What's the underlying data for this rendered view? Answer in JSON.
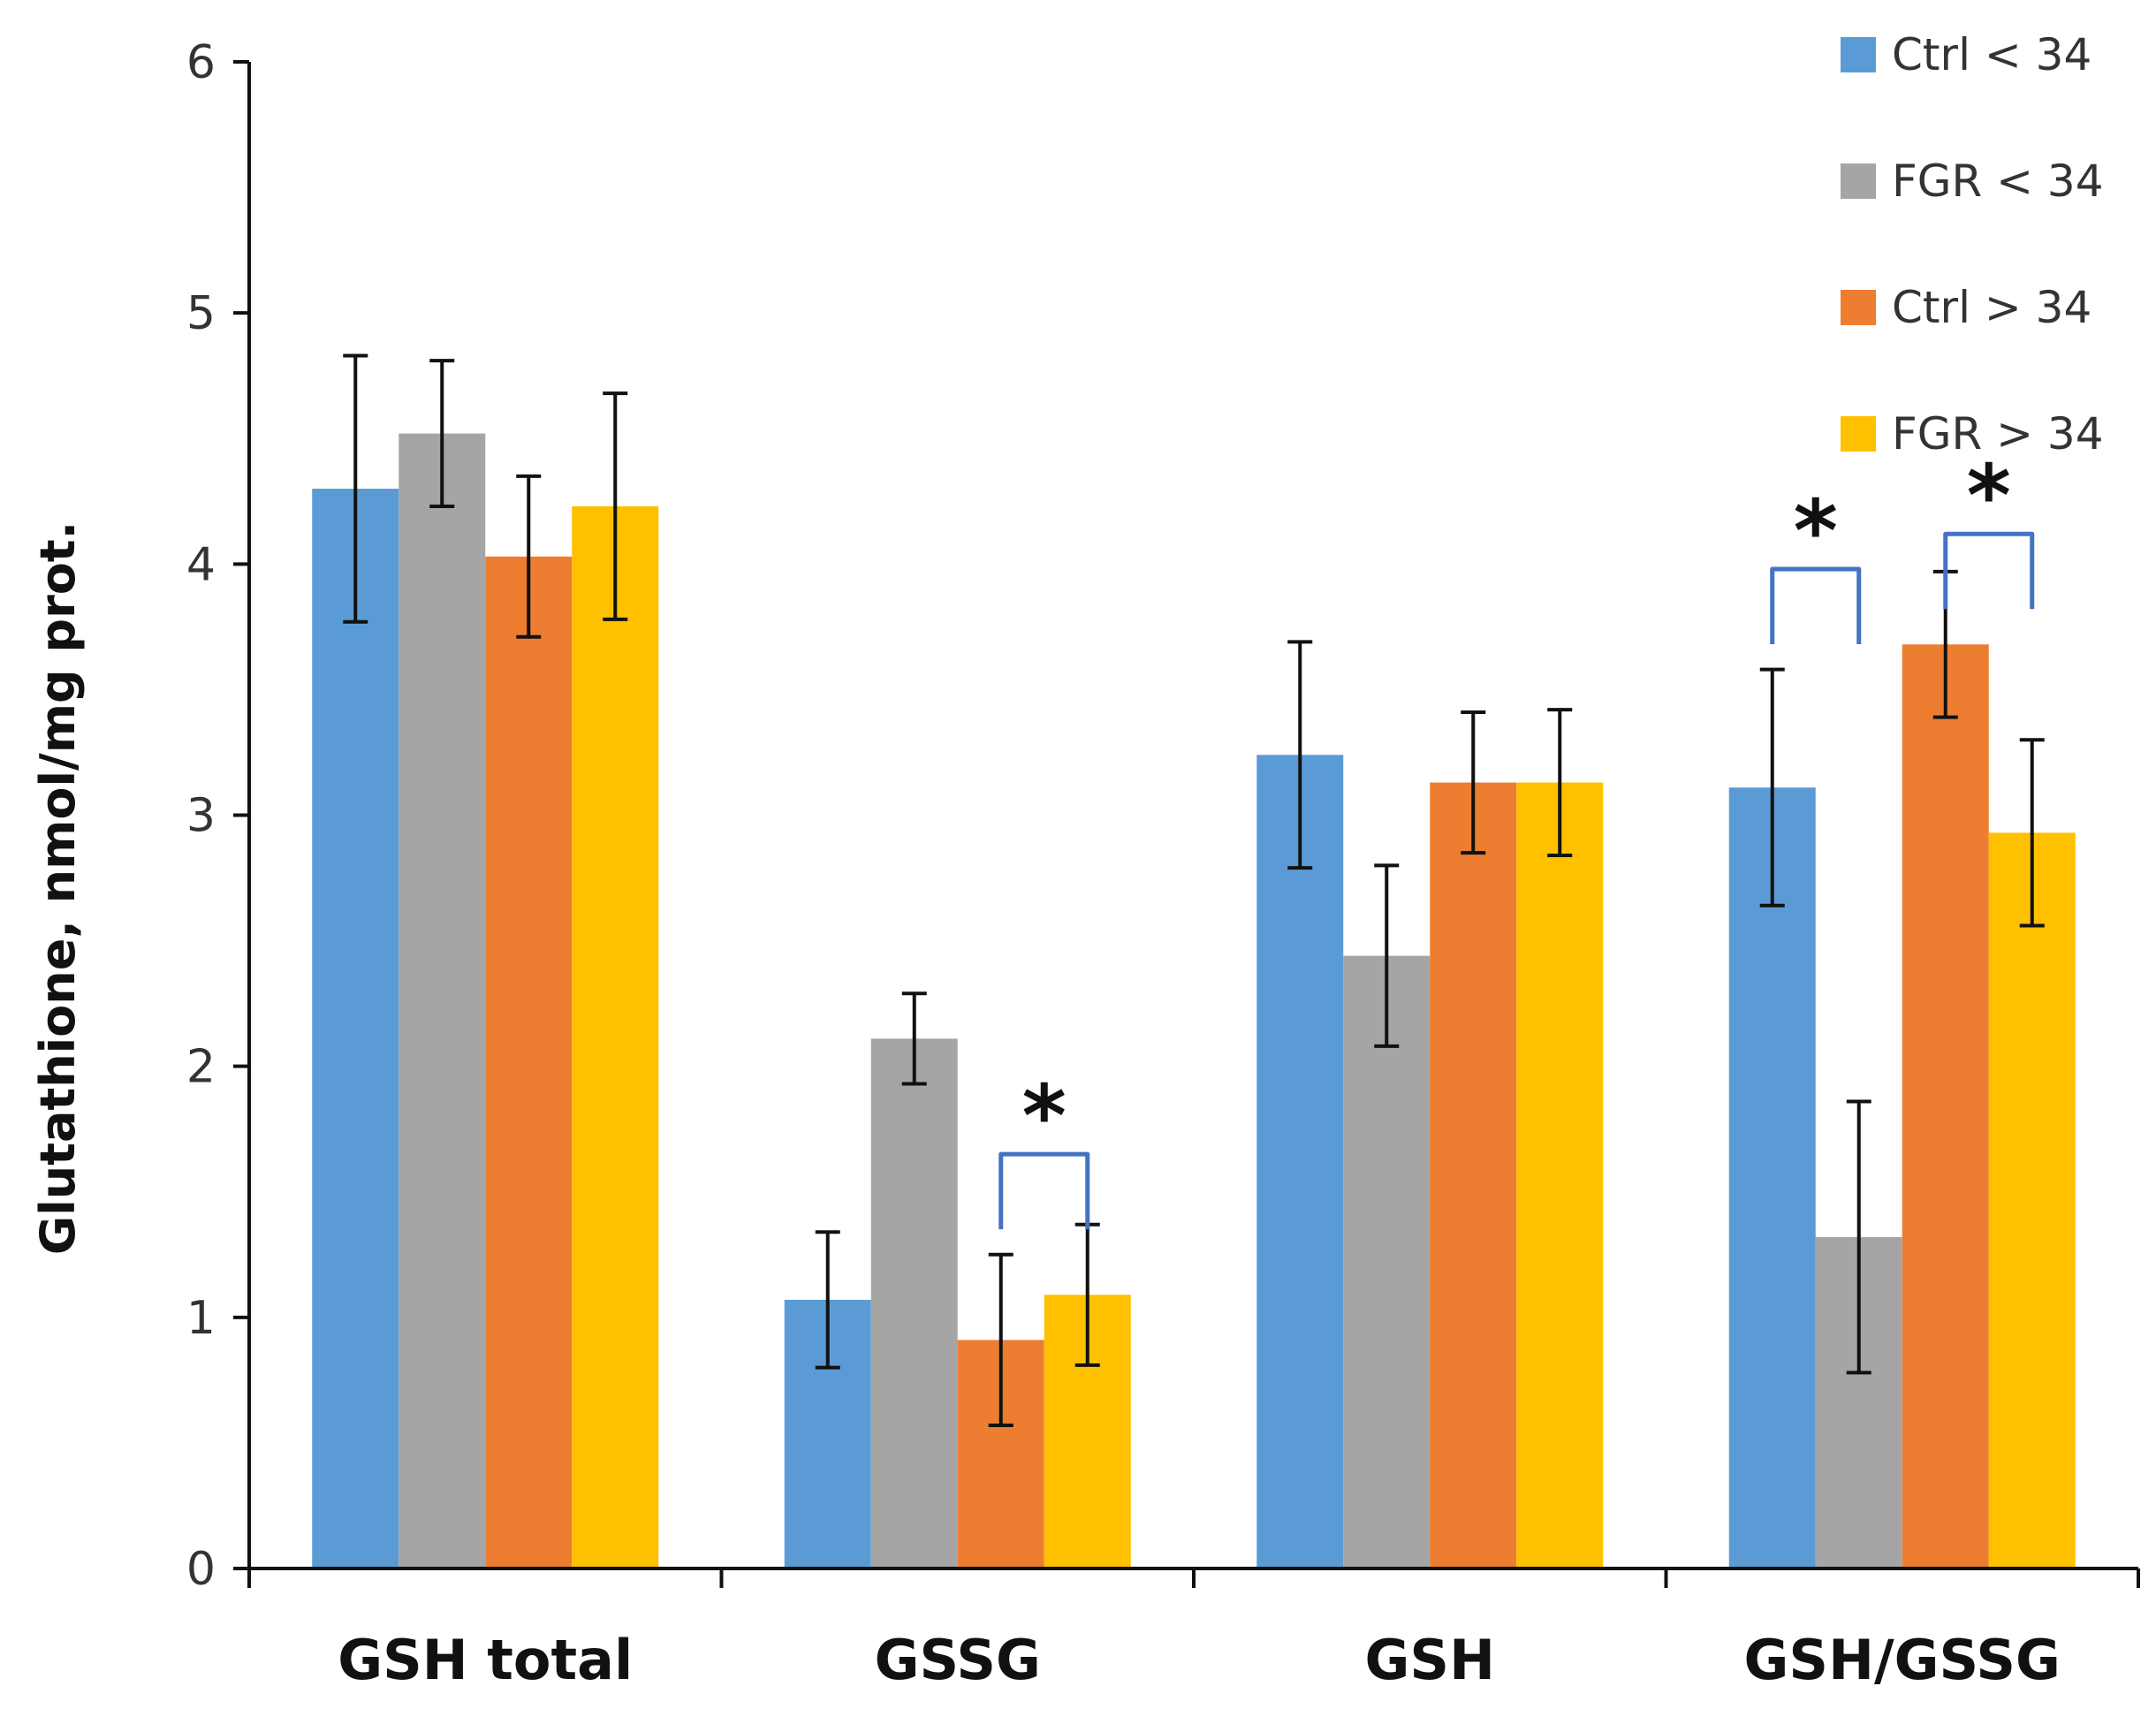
{
  "chart_data": {
    "type": "bar",
    "title": "",
    "xlabel": "",
    "ylabel": "Glutathione, nmol/mg prot.",
    "ylim": [
      0,
      6
    ],
    "yticks": [
      "0",
      "1",
      "2",
      "3",
      "4",
      "5",
      "6"
    ],
    "grid": false,
    "legend_position": "top-right",
    "categories": [
      "GSH total",
      "GSSG",
      "GSH",
      "GSH/GSSG"
    ],
    "series": [
      {
        "name": "Ctrl < 34",
        "color": "#5b9bd5",
        "values": [
          4.3,
          1.07,
          3.24,
          3.11
        ],
        "errors": [
          0.53,
          0.27,
          0.45,
          0.47
        ]
      },
      {
        "name": "FGR < 34",
        "color": "#a5a5a5",
        "values": [
          4.52,
          2.11,
          2.44,
          1.32
        ],
        "errors": [
          0.29,
          0.18,
          0.36,
          0.54
        ]
      },
      {
        "name": "Ctrl > 34",
        "color": "#ed7d31",
        "values": [
          4.03,
          0.91,
          3.13,
          3.68
        ],
        "errors": [
          0.32,
          0.34,
          0.28,
          0.29
        ]
      },
      {
        "name": "FGR > 34",
        "color": "#ffc000",
        "values": [
          4.23,
          1.09,
          3.13,
          2.93
        ],
        "errors": [
          0.45,
          0.28,
          0.29,
          0.37
        ]
      }
    ],
    "annotations": [
      {
        "label": "*",
        "category": "GSSG",
        "from_series": 2,
        "to_series": 3,
        "level": 1.65,
        "star_y": 1.86
      },
      {
        "label": "*",
        "category": "GSH/GSSG",
        "from_series": 0,
        "to_series": 1,
        "level": 3.98,
        "star_y": 4.19
      },
      {
        "label": "*",
        "category": "GSH/GSSG",
        "from_series": 2,
        "to_series": 3,
        "level": 4.12,
        "star_y": 4.33
      }
    ],
    "annotation_color": "#4472c4"
  }
}
